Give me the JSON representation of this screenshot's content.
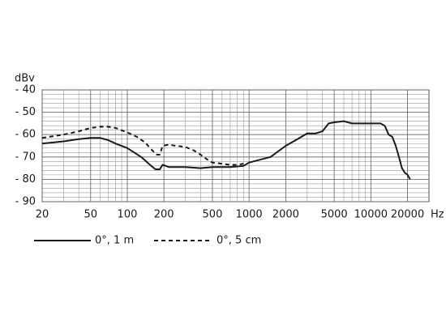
{
  "chart_data": {
    "type": "line",
    "y_label": "dBv",
    "x_unit": "Hz",
    "x_scale": "log",
    "xlim": [
      20,
      30000
    ],
    "xticks": [
      20,
      50,
      100,
      200,
      500,
      1000,
      2000,
      5000,
      10000,
      20000
    ],
    "ylim": [
      -90,
      -40
    ],
    "yticks": [
      {
        "value": -40,
        "label": "- 40"
      },
      {
        "value": -50,
        "label": "- 50"
      },
      {
        "value": -60,
        "label": "- 60"
      },
      {
        "value": -70,
        "label": "- 70"
      },
      {
        "value": -80,
        "label": "- 80"
      },
      {
        "value": -90,
        "label": "- 90"
      }
    ],
    "y_minor_step": 2,
    "grid": true,
    "series": [
      {
        "name": "0°, 1 m",
        "color": "#1a1a1a",
        "style": "solid",
        "x": [
          20,
          30,
          40,
          50,
          60,
          70,
          80,
          100,
          130,
          150,
          170,
          185,
          195,
          220,
          300,
          400,
          500,
          700,
          900,
          1000,
          1500,
          2000,
          2500,
          3000,
          3500,
          4000,
          4500,
          5000,
          6000,
          7000,
          8000,
          10000,
          12000,
          13000,
          14000,
          15000,
          16000,
          17000,
          18000,
          19000,
          20000,
          21000
        ],
        "values": [
          -64,
          -63,
          -62,
          -61.5,
          -61.5,
          -62.5,
          -64,
          -66,
          -70,
          -73,
          -75.5,
          -75.5,
          -73.5,
          -74.5,
          -74.5,
          -75,
          -74.5,
          -74.5,
          -74,
          -72.5,
          -70,
          -65,
          -62,
          -59.5,
          -59.5,
          -58.5,
          -55,
          -54.5,
          -54,
          -55,
          -55,
          -55,
          -55,
          -56,
          -60,
          -61,
          -65,
          -70,
          -75,
          -77,
          -78,
          -80
        ]
      },
      {
        "name": "0°, 5 cm",
        "color": "#1a1a1a",
        "style": "dashed",
        "x": [
          20,
          30,
          40,
          50,
          60,
          70,
          80,
          100,
          120,
          140,
          160,
          175,
          185,
          195,
          220,
          250,
          300,
          350,
          400,
          450,
          500,
          600,
          700,
          800,
          900
        ],
        "values": [
          -61.5,
          -60,
          -58.5,
          -57,
          -56.5,
          -56.5,
          -57,
          -59,
          -61,
          -63.5,
          -67,
          -69,
          -69,
          -65,
          -64.5,
          -65,
          -65.5,
          -67,
          -69,
          -71,
          -72.5,
          -73,
          -73.5,
          -73.5,
          -73
        ]
      }
    ]
  }
}
